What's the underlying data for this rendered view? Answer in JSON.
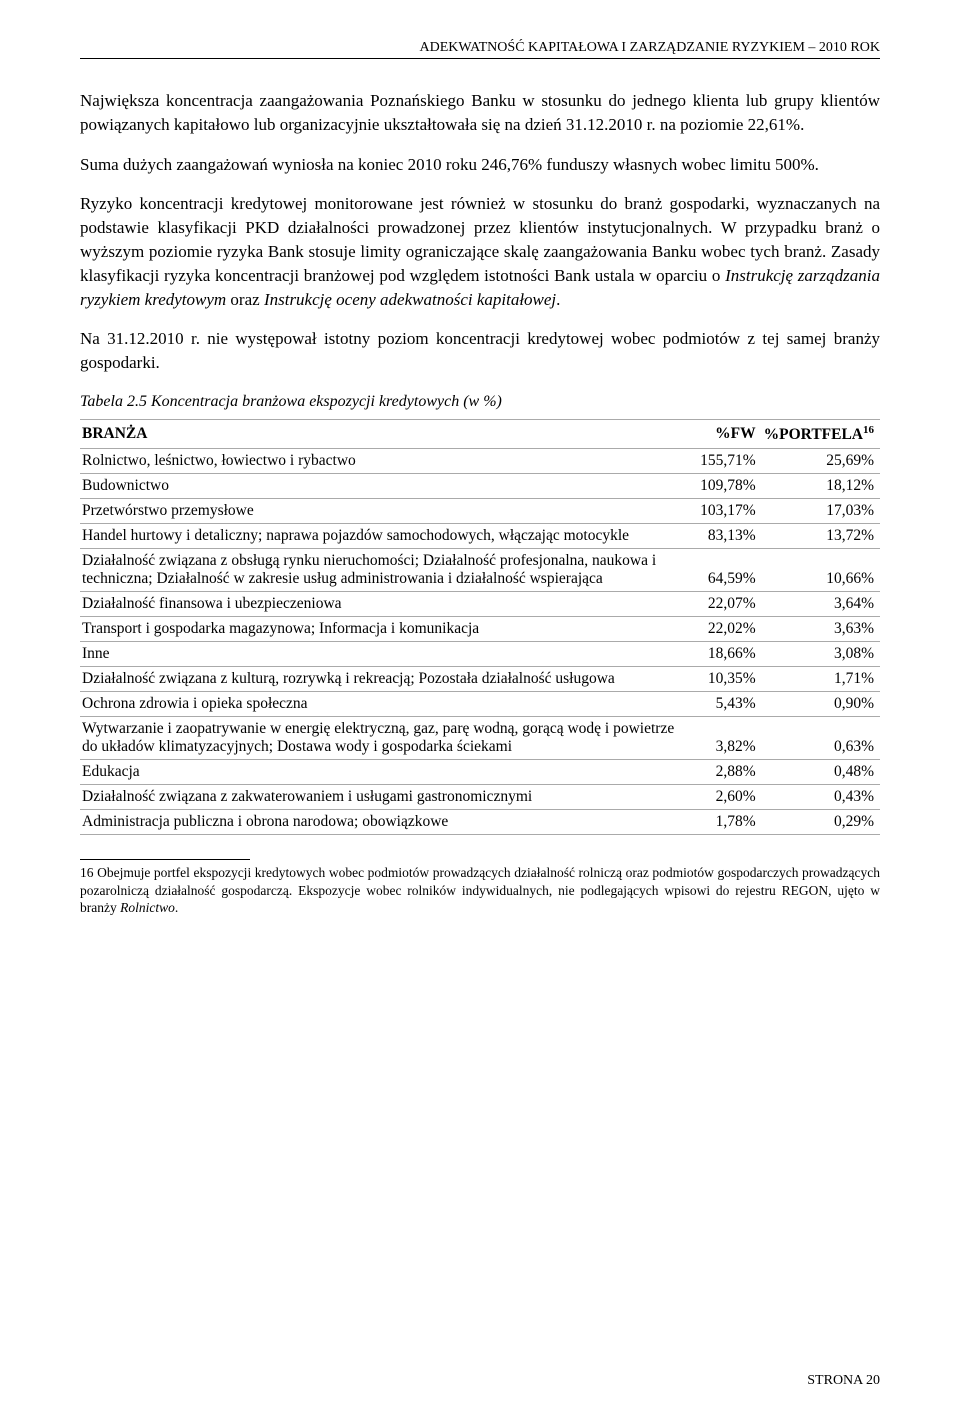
{
  "header": "ADEKWATNOŚĆ KAPITAŁOWA I ZARZĄDZANIE RYZYKIEM – 2010 ROK",
  "p1": "Największa koncentracja zaangażowania Poznańskiego Banku w stosunku do jednego klienta lub grupy klientów powiązanych kapitałowo lub organizacyjnie ukształtowała się na dzień 31.12.2010 r. na poziomie 22,61%.",
  "p2": "Suma dużych zaangażowań wyniosła na koniec 2010 roku 246,76% funduszy własnych wobec limitu 500%.",
  "p3": "Ryzyko koncentracji kredytowej monitorowane jest również w stosunku do branż gospodarki, wyznaczanych na podstawie klasyfikacji PKD działalności prowadzonej przez klientów instytucjonalnych. W przypadku branż o wyższym poziomie ryzyka Bank stosuje limity ograniczające skalę zaangażowania Banku wobec tych branż. Zasady klasyfikacji ryzyka koncentracji branżowej pod względem istotności Bank ustala w oparciu o Instrukcję zarządzania ryzykiem kredytowym oraz Instrukcję oceny adekwatności kapitałowej.",
  "p3_italic1": "Instrukcję zarządzania ryzykiem kredytowym",
  "p3_italic2": "Instrukcję oceny adekwatności kapitałowej",
  "p4": "Na 31.12.2010 r. nie występował istotny poziom koncentracji kredytowej wobec podmiotów z tej samej branży gospodarki.",
  "table_caption": "Tabela 2.5 Koncentracja branżowa ekspozycji kredytowych (w %)",
  "table": {
    "columns": [
      "BRANŻA",
      "%FW",
      "%PORTFELA"
    ],
    "footnote_ref": "16",
    "rows": [
      [
        "Rolnictwo, leśnictwo, łowiectwo i rybactwo",
        "155,71%",
        "25,69%"
      ],
      [
        "Budownictwo",
        "109,78%",
        "18,12%"
      ],
      [
        "Przetwórstwo przemysłowe",
        "103,17%",
        "17,03%"
      ],
      [
        "Handel hurtowy i detaliczny; naprawa pojazdów samochodowych, włączając motocykle",
        "83,13%",
        "13,72%"
      ],
      [
        "Działalność związana z obsługą rynku nieruchomości; Działalność profesjonalna, naukowa i techniczna; Działalność w zakresie usług administrowania i działalność wspierająca",
        "64,59%",
        "10,66%"
      ],
      [
        "Działalność finansowa i ubezpieczeniowa",
        "22,07%",
        "3,64%"
      ],
      [
        "Transport i gospodarka magazynowa; Informacja i komunikacja",
        "22,02%",
        "3,63%"
      ],
      [
        "Inne",
        "18,66%",
        "3,08%"
      ],
      [
        "Działalność związana z kulturą, rozrywką i rekreacją; Pozostała działalność usługowa",
        "10,35%",
        "1,71%"
      ],
      [
        "Ochrona zdrowia i opieka społeczna",
        "5,43%",
        "0,90%"
      ],
      [
        "Wytwarzanie i zaopatrywanie w energię elektryczną, gaz, parę wodną, gorącą wodę i powietrze do układów klimatyzacyjnych; Dostawa wody i gospodarka ściekami",
        "3,82%",
        "0,63%"
      ],
      [
        "Edukacja",
        "2,88%",
        "0,48%"
      ],
      [
        "Działalność związana z zakwaterowaniem i usługami gastronomicznymi",
        "2,60%",
        "0,43%"
      ],
      [
        "Administracja publiczna i obrona narodowa; obowiązkowe",
        "1,78%",
        "0,29%"
      ]
    ]
  },
  "footnote_num": "16",
  "footnote": "Obejmuje portfel ekspozycji kredytowych wobec podmiotów prowadzących działalność rolniczą oraz podmiotów gospodarczych prowadzących pozarolniczą działalność gospodarczą. Ekspozycje wobec rolników indywidualnych, nie podlegających wpisowi do rejestru REGON, ujęto w branży Rolnictwo.",
  "footnote_italic": "Rolnictwo",
  "footer": "STRONA 20"
}
